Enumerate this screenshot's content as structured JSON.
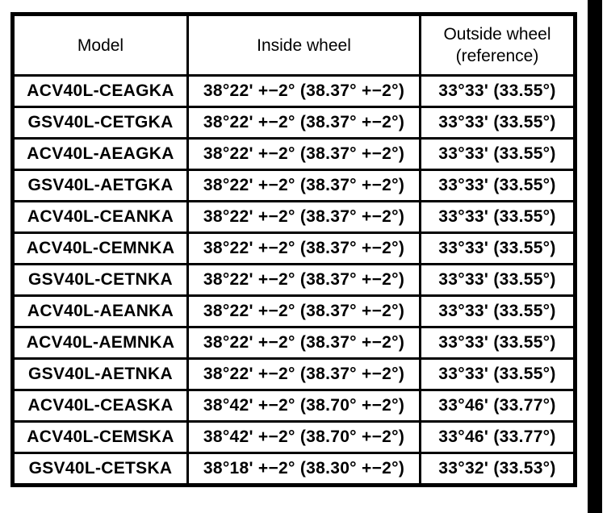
{
  "page": {
    "background_color": "#ffffff",
    "border_color": "#000000",
    "scan_edge_bar_color": "#000000"
  },
  "table": {
    "headers": {
      "model": "Model",
      "inside_wheel": "Inside wheel",
      "outside_wheel_line1": "Outside wheel",
      "outside_wheel_line2": "(reference)"
    },
    "rows": [
      {
        "model": "ACV40L-CEAGKA",
        "inside_wheel": "38°22' +−2° (38.37° +−2°)",
        "outside_wheel": "33°33' (33.55°)"
      },
      {
        "model": "GSV40L-CETGKA",
        "inside_wheel": "38°22' +−2° (38.37° +−2°)",
        "outside_wheel": "33°33' (33.55°)"
      },
      {
        "model": "ACV40L-AEAGKA",
        "inside_wheel": "38°22' +−2° (38.37° +−2°)",
        "outside_wheel": "33°33' (33.55°)"
      },
      {
        "model": "GSV40L-AETGKA",
        "inside_wheel": "38°22' +−2° (38.37° +−2°)",
        "outside_wheel": "33°33' (33.55°)"
      },
      {
        "model": "ACV40L-CEANKA",
        "inside_wheel": "38°22' +−2° (38.37° +−2°)",
        "outside_wheel": "33°33' (33.55°)"
      },
      {
        "model": "ACV40L-CEMNKA",
        "inside_wheel": "38°22' +−2° (38.37° +−2°)",
        "outside_wheel": "33°33' (33.55°)"
      },
      {
        "model": "GSV40L-CETNKA",
        "inside_wheel": "38°22' +−2° (38.37° +−2°)",
        "outside_wheel": "33°33' (33.55°)"
      },
      {
        "model": "ACV40L-AEANKA",
        "inside_wheel": "38°22' +−2° (38.37° +−2°)",
        "outside_wheel": "33°33' (33.55°)"
      },
      {
        "model": "ACV40L-AEMNKA",
        "inside_wheel": "38°22' +−2° (38.37° +−2°)",
        "outside_wheel": "33°33' (33.55°)"
      },
      {
        "model": "GSV40L-AETNKA",
        "inside_wheel": "38°22' +−2° (38.37° +−2°)",
        "outside_wheel": "33°33' (33.55°)"
      },
      {
        "model": "ACV40L-CEASKA",
        "inside_wheel": "38°42' +−2° (38.70° +−2°)",
        "outside_wheel": "33°46' (33.77°)"
      },
      {
        "model": "ACV40L-CEMSKA",
        "inside_wheel": "38°42' +−2° (38.70° +−2°)",
        "outside_wheel": "33°46' (33.77°)"
      },
      {
        "model": "GSV40L-CETSKA",
        "inside_wheel": "38°18' +−2° (38.30° +−2°)",
        "outside_wheel": "33°32' (33.53°)"
      }
    ]
  }
}
